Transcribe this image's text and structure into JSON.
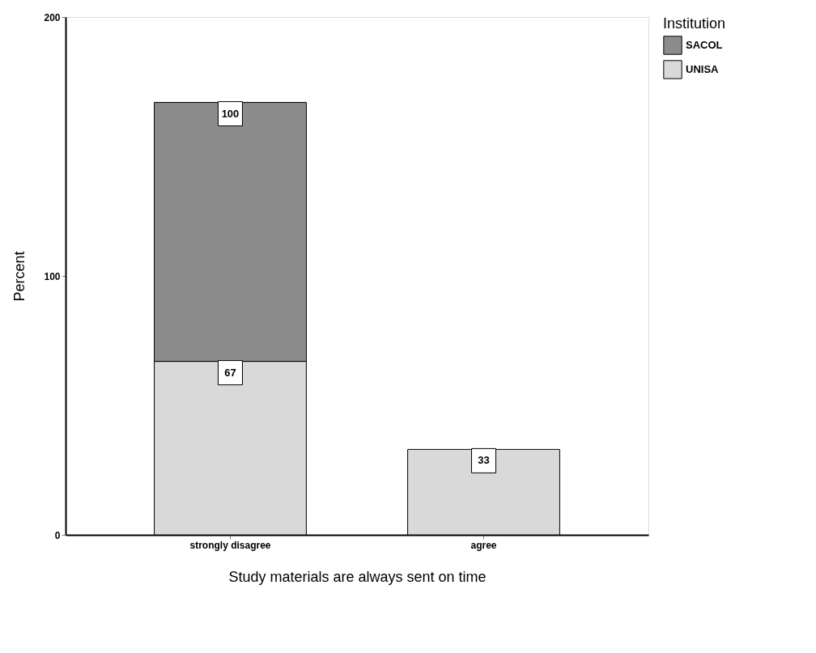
{
  "chart_data": {
    "type": "bar",
    "stacked": true,
    "categories": [
      "strongly disagree",
      "agree"
    ],
    "series": [
      {
        "name": "UNISA",
        "color": "#d9d9d9",
        "values": [
          67,
          33
        ]
      },
      {
        "name": "SACOL",
        "color": "#8c8c8c",
        "values": [
          100,
          null
        ]
      }
    ],
    "xlabel": "Study materials are always sent on time",
    "ylabel": "Percent",
    "legend_title": "Institution",
    "ylim": [
      0,
      200
    ],
    "yticks": [
      0,
      100,
      200
    ],
    "grid": false,
    "legend": "right",
    "data_labels": true
  }
}
